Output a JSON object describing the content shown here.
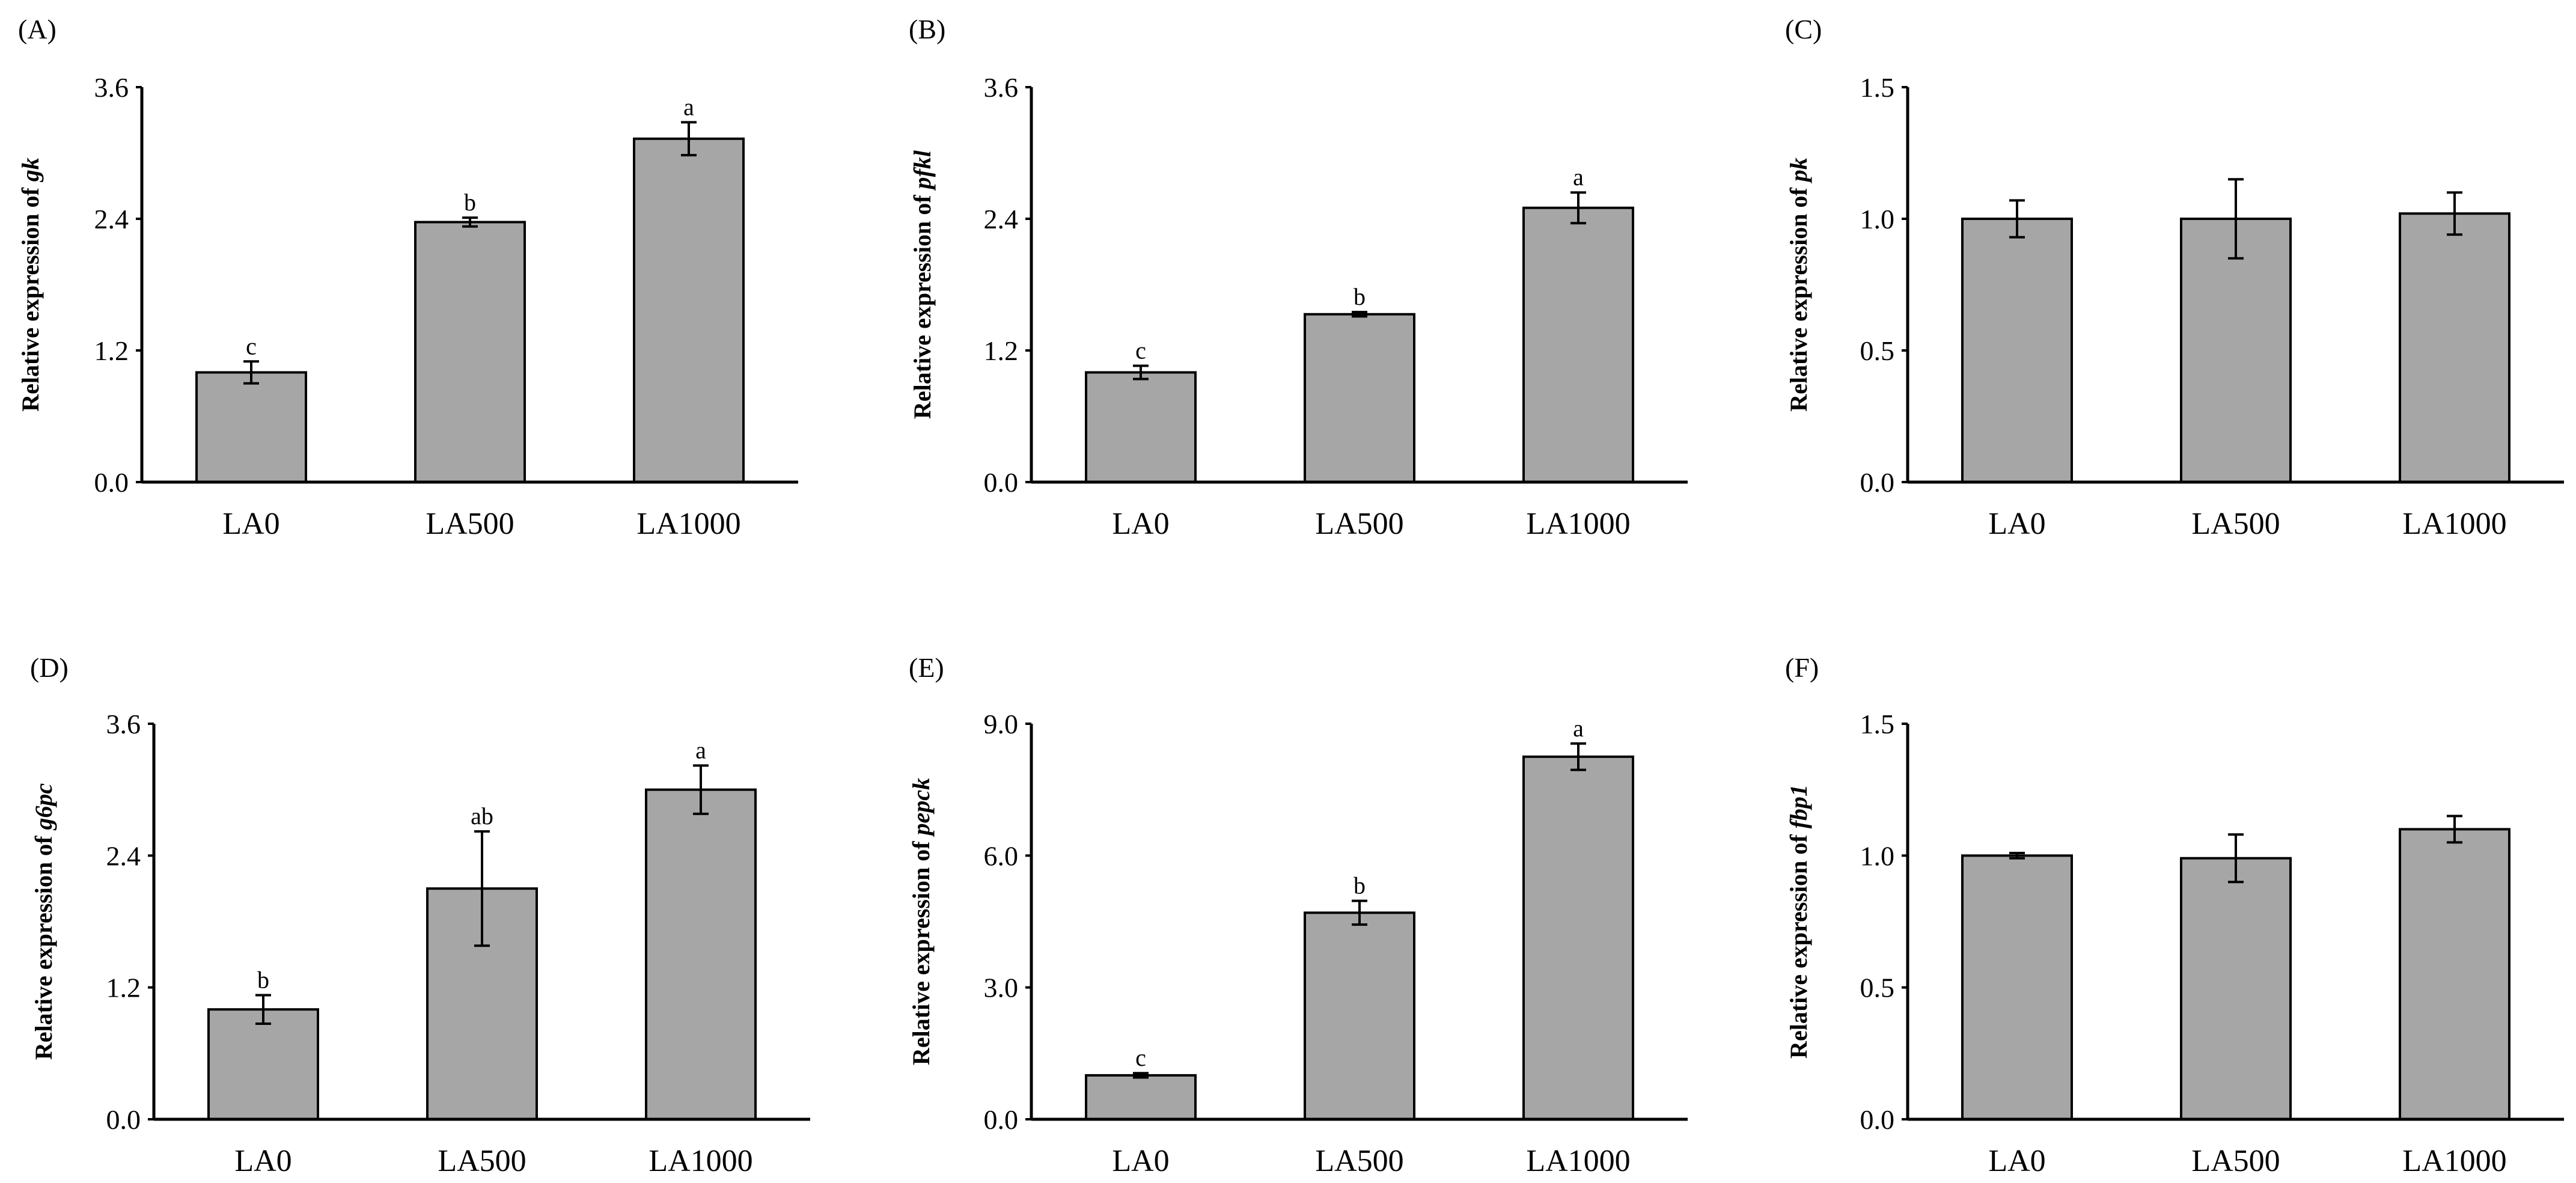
{
  "figure": {
    "bar_color": "#a6a6a6",
    "axis_color": "#000000"
  },
  "chart_data": [
    {
      "panel": "(A)",
      "type": "bar",
      "categories": [
        "LA0",
        "LA500",
        "LA1000"
      ],
      "values": [
        1.0,
        2.37,
        3.13
      ],
      "errors": [
        0.1,
        0.04,
        0.15
      ],
      "significance": [
        "c",
        "b",
        "a"
      ],
      "ylabel_prefix": "Relative expression of ",
      "gene": "gk",
      "yticks": [
        "0.0",
        "1.2",
        "2.4",
        "3.6"
      ],
      "ylim": [
        0,
        3.6
      ]
    },
    {
      "panel": "(B)",
      "type": "bar",
      "categories": [
        "LA0",
        "LA500",
        "LA1000"
      ],
      "values": [
        1.0,
        1.53,
        2.5
      ],
      "errors": [
        0.06,
        0.02,
        0.14
      ],
      "significance": [
        "c",
        "b",
        "a"
      ],
      "ylabel_prefix": "Relative expression of ",
      "gene": "pfkl",
      "yticks": [
        "0.0",
        "1.2",
        "2.4",
        "3.6"
      ],
      "ylim": [
        0,
        3.6
      ]
    },
    {
      "panel": "(C)",
      "type": "bar",
      "categories": [
        "LA0",
        "LA500",
        "LA1000"
      ],
      "values": [
        1.0,
        1.0,
        1.02
      ],
      "errors": [
        0.07,
        0.15,
        0.08
      ],
      "significance": [
        "",
        "",
        ""
      ],
      "ylabel_prefix": "Relative expression of ",
      "gene": "pk",
      "yticks": [
        "0.0",
        "0.5",
        "1.0",
        "1.5"
      ],
      "ylim": [
        0,
        1.5
      ]
    },
    {
      "panel": "(D)",
      "type": "bar",
      "categories": [
        "LA0",
        "LA500",
        "LA1000"
      ],
      "values": [
        1.0,
        2.1,
        3.0
      ],
      "errors": [
        0.13,
        0.52,
        0.22
      ],
      "significance": [
        "b",
        "ab",
        "a"
      ],
      "ylabel_prefix": "Relative expression of ",
      "gene": "g6pc",
      "yticks": [
        "0.0",
        "1.2",
        "2.4",
        "3.6"
      ],
      "ylim": [
        0,
        3.6
      ]
    },
    {
      "panel": "(E)",
      "type": "bar",
      "categories": [
        "LA0",
        "LA500",
        "LA1000"
      ],
      "values": [
        1.0,
        4.7,
        8.25
      ],
      "errors": [
        0.05,
        0.27,
        0.3
      ],
      "significance": [
        "c",
        "b",
        "a"
      ],
      "ylabel_prefix": "Relative expression of ",
      "gene": "pepck",
      "yticks": [
        "0.0",
        "3.0",
        "6.0",
        "9.0"
      ],
      "ylim": [
        0,
        9.0
      ]
    },
    {
      "panel": "(F)",
      "type": "bar",
      "categories": [
        "LA0",
        "LA500",
        "LA1000"
      ],
      "values": [
        1.0,
        0.99,
        1.1
      ],
      "errors": [
        0.01,
        0.09,
        0.05
      ],
      "significance": [
        "",
        "",
        ""
      ],
      "ylabel_prefix": "Relative expression of ",
      "gene": "fbp1",
      "yticks": [
        "0.0",
        "0.5",
        "1.0",
        "1.5"
      ],
      "ylim": [
        0,
        1.5
      ]
    }
  ]
}
